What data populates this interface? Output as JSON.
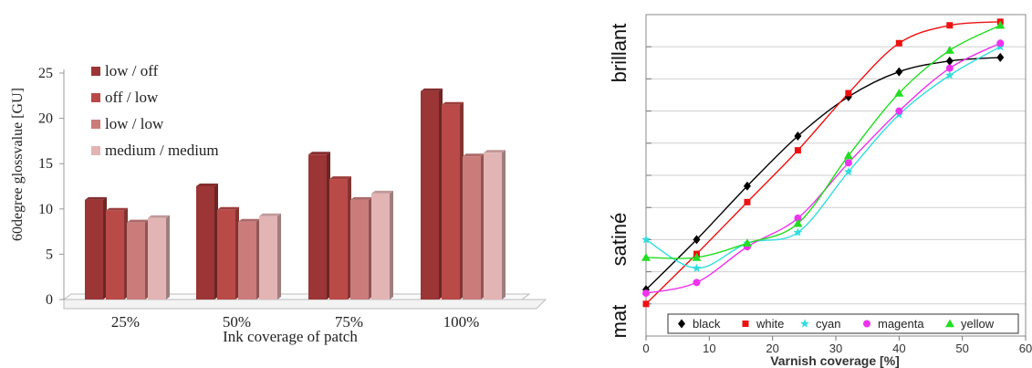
{
  "chart_data": [
    {
      "type": "bar",
      "ylabel": "60degree glossvalue [GU]",
      "xlabel": "Ink coverage of patch",
      "ylim": [
        0,
        25
      ],
      "yticks": [
        "0",
        "5",
        "10",
        "15",
        "20",
        "25"
      ],
      "categories": [
        "25%",
        "50%",
        "75%",
        "100%"
      ],
      "legend_position": "top-left",
      "grid": false,
      "series": [
        {
          "name": "low / off",
          "color": "#9c3535",
          "values": [
            11,
            12.5,
            16,
            23
          ]
        },
        {
          "name": "off /  low",
          "color": "#b94a48",
          "values": [
            9.8,
            9.9,
            13.3,
            21.5
          ]
        },
        {
          "name": "low / low",
          "color": "#cc7b7b",
          "values": [
            8.5,
            8.6,
            11,
            15.8
          ]
        },
        {
          "name": "medium / medium",
          "color": "#e3b4b4",
          "values": [
            9,
            9.2,
            11.7,
            16.2
          ]
        }
      ]
    },
    {
      "type": "scatter",
      "xlabel": "Varnish coverage [%]",
      "xlim": [
        0,
        60
      ],
      "xticks": [
        "0",
        "10",
        "20",
        "30",
        "40",
        "50",
        "60"
      ],
      "ylim": [
        0,
        9
      ],
      "category_labels": [
        "mat",
        "satiné",
        "brillant"
      ],
      "legend_position": "bottom",
      "grid": true,
      "series": [
        {
          "name": "black",
          "marker": "diamond",
          "color": "#000000",
          "x": [
            0,
            8,
            16,
            24,
            32,
            40,
            48,
            56
          ],
          "y": [
            1.3,
            2.7,
            4.2,
            5.6,
            6.7,
            7.4,
            7.7,
            7.8
          ]
        },
        {
          "name": "white",
          "marker": "square",
          "color": "#ee1111",
          "x": [
            0,
            8,
            16,
            24,
            32,
            40,
            48,
            56
          ],
          "y": [
            0.9,
            2.3,
            3.75,
            5.2,
            6.8,
            8.2,
            8.7,
            8.8
          ]
        },
        {
          "name": "cyan",
          "marker": "star",
          "color": "#33dddd",
          "x": [
            0,
            8,
            16,
            24,
            32,
            40,
            48,
            56
          ],
          "y": [
            2.7,
            1.9,
            2.6,
            2.9,
            4.6,
            6.2,
            7.3,
            8.1
          ]
        },
        {
          "name": "magenta",
          "marker": "circle",
          "color": "#ee33ee",
          "x": [
            0,
            8,
            16,
            24,
            32,
            40,
            48,
            56
          ],
          "y": [
            1.2,
            1.5,
            2.5,
            3.3,
            4.85,
            6.3,
            7.5,
            8.2
          ]
        },
        {
          "name": "yellow",
          "marker": "triangle",
          "color": "#22dd22",
          "x": [
            0,
            8,
            16,
            24,
            32,
            40,
            48,
            56
          ],
          "y": [
            2.2,
            2.2,
            2.6,
            3.15,
            5.05,
            6.8,
            8.0,
            8.7
          ]
        }
      ]
    }
  ]
}
